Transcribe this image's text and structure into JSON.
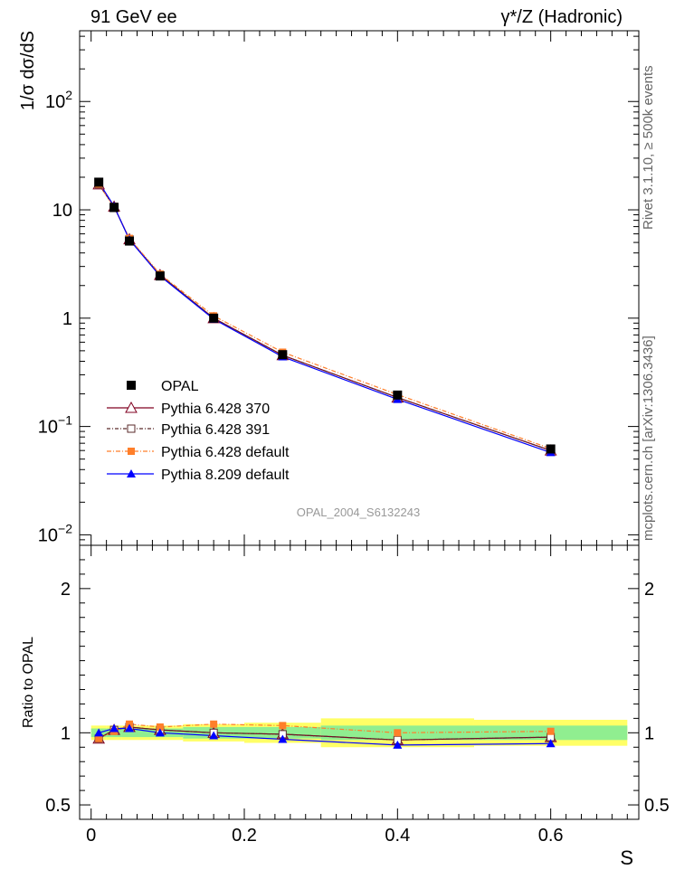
{
  "header": {
    "left": "91 GeV ee",
    "right": "γ*/Z (Hadronic)"
  },
  "side_labels": {
    "rivet": "Rivet 3.1.10, ≥ 500k events",
    "mcplots": "mcplots.cern.ch [arXiv:1306.3436]"
  },
  "watermark": "OPAL_2004_S6132243",
  "colors": {
    "data": "#000000",
    "p370": "#800020",
    "p391": "#5a2a2a",
    "p6def": "#ff7f2a",
    "p8": "#0000ff",
    "band_inner": "#90ee90",
    "band_outer": "#ffff66"
  },
  "chart_data": [
    {
      "type": "line",
      "panel": "main",
      "ylabel": "1/σ dσ/dS",
      "yscale": "log",
      "ylim": [
        0.008,
        450
      ],
      "xlim": [
        -0.015,
        0.715
      ],
      "y_tick_labels": [
        "10^-2",
        "10^-1",
        "1",
        "10",
        "10^2"
      ],
      "x": [
        0.01,
        0.03,
        0.05,
        0.09,
        0.16,
        0.25,
        0.4,
        0.6
      ],
      "series": [
        {
          "name": "OPAL",
          "marker": "filled-square",
          "values": [
            18.0,
            10.5,
            5.15,
            2.45,
            1.0,
            0.46,
            0.195,
            0.062
          ]
        },
        {
          "name": "Pythia 6.428 370",
          "marker": "open-triangle",
          "values": [
            17.2,
            10.7,
            5.35,
            2.5,
            1.0,
            0.455,
            0.185,
            0.06
          ]
        },
        {
          "name": "Pythia 6.428 391",
          "marker": "open-square",
          "values": [
            17.2,
            10.7,
            5.35,
            2.5,
            1.0,
            0.455,
            0.185,
            0.06
          ]
        },
        {
          "name": "Pythia 6.428 default",
          "marker": "filled-square",
          "values": [
            17.3,
            10.6,
            5.45,
            2.55,
            1.05,
            0.485,
            0.197,
            0.0625
          ]
        },
        {
          "name": "Pythia 8.209 default",
          "marker": "filled-triangle",
          "values": [
            18.0,
            10.8,
            5.3,
            2.45,
            0.98,
            0.44,
            0.178,
            0.0575
          ]
        }
      ],
      "legend_placement": "lower-left"
    },
    {
      "type": "line",
      "panel": "ratio",
      "ylabel": "Ratio to OPAL",
      "xlabel": "S",
      "ylim": [
        0.4,
        2.3
      ],
      "y_tick_labels": [
        "0.5",
        "1",
        "2"
      ],
      "x_tick_labels": [
        "0",
        "0.2",
        "0.4",
        "0.6"
      ],
      "xlim": [
        -0.015,
        0.715
      ],
      "bands": {
        "bins": [
          [
            0.0,
            0.02
          ],
          [
            0.02,
            0.04
          ],
          [
            0.04,
            0.06
          ],
          [
            0.06,
            0.12
          ],
          [
            0.12,
            0.2
          ],
          [
            0.2,
            0.3
          ],
          [
            0.3,
            0.5
          ],
          [
            0.5,
            0.7
          ]
        ],
        "inner": [
          0.03,
          0.03,
          0.03,
          0.03,
          0.04,
          0.04,
          0.05,
          0.05
        ],
        "outer": [
          0.05,
          0.05,
          0.05,
          0.05,
          0.06,
          0.07,
          0.1,
          0.09
        ]
      },
      "x": [
        0.01,
        0.03,
        0.05,
        0.09,
        0.16,
        0.25,
        0.4,
        0.6
      ],
      "series": [
        {
          "name": "Pythia 6.428 370",
          "values": [
            0.96,
            1.02,
            1.04,
            1.02,
            1.0,
            0.99,
            0.95,
            0.97
          ]
        },
        {
          "name": "Pythia 6.428 391",
          "values": [
            0.96,
            1.02,
            1.04,
            1.02,
            1.0,
            0.99,
            0.95,
            0.97
          ]
        },
        {
          "name": "Pythia 6.428 default",
          "values": [
            0.96,
            1.01,
            1.06,
            1.04,
            1.06,
            1.05,
            1.0,
            1.01
          ]
        },
        {
          "name": "Pythia 8.209 default",
          "values": [
            1.0,
            1.03,
            1.03,
            1.0,
            0.98,
            0.955,
            0.915,
            0.925
          ]
        }
      ]
    }
  ]
}
